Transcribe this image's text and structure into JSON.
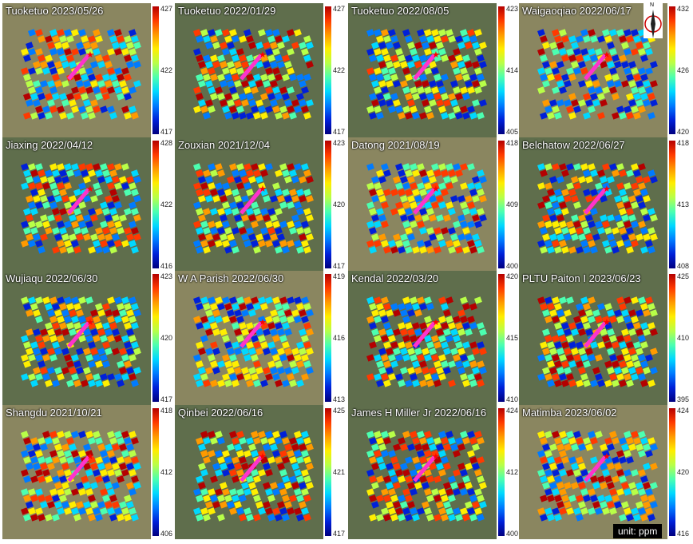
{
  "panels": [
    {
      "title": "Tuoketuo 2023/05/26",
      "ticks": [
        "427",
        "422",
        "417"
      ]
    },
    {
      "title": "Tuoketuo 2022/01/29",
      "ticks": [
        "427",
        "422",
        "417"
      ]
    },
    {
      "title": "Tuoketuo 2022/08/05",
      "ticks": [
        "423",
        "414",
        "405"
      ]
    },
    {
      "title": "Waigaoqiao 2022/06/17",
      "ticks": [
        "432",
        "426",
        "420"
      ]
    },
    {
      "title": "Jiaxing 2022/04/12",
      "ticks": [
        "428",
        "422",
        "416"
      ]
    },
    {
      "title": "Zouxian 2021/12/04",
      "ticks": [
        "423",
        "420",
        "417"
      ]
    },
    {
      "title": "Datong 2021/08/19",
      "ticks": [
        "418",
        "409",
        "400"
      ]
    },
    {
      "title": "Belchatow 2022/06/27",
      "ticks": [
        "418",
        "413",
        "408"
      ]
    },
    {
      "title": "Wujiaqu 2022/06/30",
      "ticks": [
        "423",
        "420",
        "417"
      ]
    },
    {
      "title": "W A Parish 2022/06/30",
      "ticks": [
        "419",
        "416",
        "413"
      ]
    },
    {
      "title": "Kendal 2022/03/20",
      "ticks": [
        "420",
        "415",
        "410"
      ]
    },
    {
      "title": "PLTU Paiton I 2023/06/23",
      "ticks": [
        "425",
        "410",
        "395"
      ]
    },
    {
      "title": "Shangdu 2021/10/21",
      "ticks": [
        "418",
        "412",
        "406"
      ]
    },
    {
      "title": "Qinbei 2022/06/16",
      "ticks": [
        "425",
        "421",
        "417"
      ]
    },
    {
      "title": "James H Miller Jr 2022/06/16",
      "ticks": [
        "424",
        "412",
        "400"
      ]
    },
    {
      "title": "Matimba 2023/06/02",
      "ticks": [
        "424",
        "420",
        "416"
      ]
    }
  ],
  "unit_label": "unit: ppm",
  "north_label": "N",
  "colors": {
    "arrow": "#ff33cc",
    "marker": "#ff0000"
  }
}
